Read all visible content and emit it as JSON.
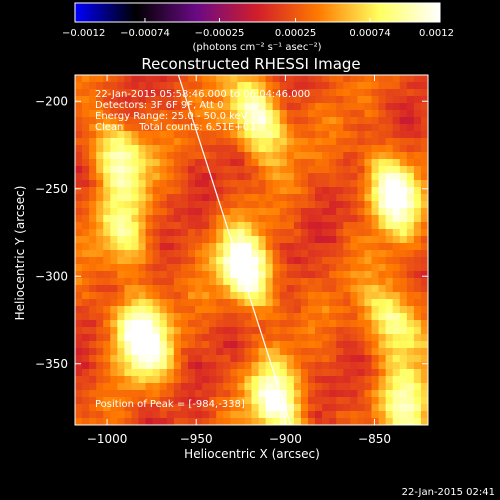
{
  "chart_data": {
    "type": "heatmap",
    "title": "Reconstructed RHESSI Image",
    "xlabel": "Heliocentric X (arcsec)",
    "ylabel": "Heliocentric Y (arcsec)",
    "xlim": [
      -1018,
      -820
    ],
    "ylim": [
      -385,
      -185
    ],
    "x_ticks": [
      -1000,
      -950,
      -900,
      -850
    ],
    "x_tick_labels": [
      "−1000",
      "−950",
      "−900",
      "−850"
    ],
    "y_ticks": [
      -200,
      -250,
      -300,
      -350
    ],
    "y_tick_labels": [
      "−200",
      "−250",
      "−300",
      "−350"
    ],
    "colorbar": {
      "vmin": -0.0012,
      "vmax": 0.0012,
      "ticks": [
        -0.0012,
        -0.00074,
        -0.00025,
        0.00025,
        0.00074,
        0.0012
      ],
      "tick_labels": [
        "−0.0012",
        "−0.00074",
        "−0.00025",
        "0.00025",
        "0.00074",
        "0.0012"
      ],
      "units": "(photons cm⁻² s⁻¹ asec⁻²)",
      "colormap": [
        "#0000ff",
        "#000000",
        "#6a0a85",
        "#d21e2a",
        "#ff7a00",
        "#ffff60",
        "#ffffff"
      ]
    },
    "annotations": [
      "22-Jan-2015 05:58:46.000 to 06:04:46.000",
      "Detectors: 3F 6F 9F, Att 0",
      "Energy Range: 25.0 - 50.0 keV",
      "Clean     Total counts: 6.51E+03"
    ],
    "peak_label": "Position of Peak = [-984,-338]",
    "limb_line": [
      [
        -960,
        -185
      ],
      [
        -897,
        -385
      ]
    ],
    "sources": [
      {
        "x": -993,
        "y": -232,
        "value": 0.00085
      },
      {
        "x": -990,
        "y": -276,
        "value": 0.0006
      },
      {
        "x": -981,
        "y": -335,
        "value": 0.0012
      },
      {
        "x": -922,
        "y": -296,
        "value": 0.00115
      },
      {
        "x": -916,
        "y": -210,
        "value": 0.001
      },
      {
        "x": -905,
        "y": -372,
        "value": 0.00095
      },
      {
        "x": -840,
        "y": -252,
        "value": 0.00105
      },
      {
        "x": -839,
        "y": -326,
        "value": 0.00085
      },
      {
        "x": -831,
        "y": -375,
        "value": 0.0007
      }
    ]
  },
  "footer_date": "22-Jan-2015 02:41"
}
